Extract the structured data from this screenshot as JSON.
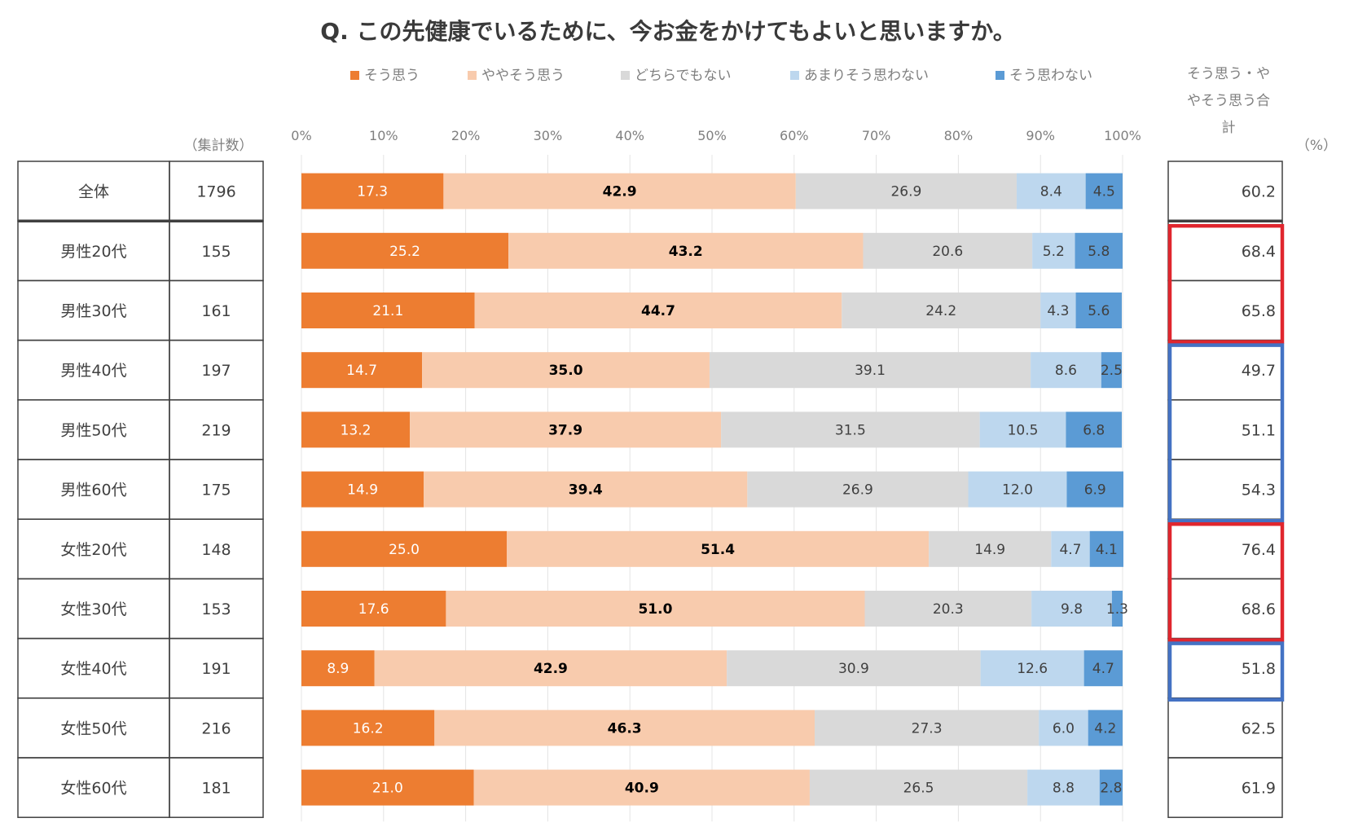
{
  "chart_data": {
    "type": "bar",
    "orientation": "horizontal",
    "stacked": "100%",
    "title": "Q. この先健康でいるために、今お金をかけてもよいと思いますか。",
    "count_header": "（集計数）",
    "total_header": "そう思う・ややそう思う合計",
    "unit_label": "（%）",
    "x_ticks": [
      "0%",
      "10%",
      "20%",
      "30%",
      "40%",
      "50%",
      "60%",
      "70%",
      "80%",
      "90%",
      "100%"
    ],
    "xlim": [
      0,
      100
    ],
    "legend_position": "top",
    "grid": true,
    "categories": [
      "全体",
      "男性20代",
      "男性30代",
      "男性40代",
      "男性50代",
      "男性60代",
      "女性20代",
      "女性30代",
      "女性40代",
      "女性50代",
      "女性60代"
    ],
    "counts": [
      "1796",
      "155",
      "161",
      "197",
      "219",
      "175",
      "148",
      "153",
      "191",
      "216",
      "181"
    ],
    "totals": [
      "60.2",
      "68.4",
      "65.8",
      "49.7",
      "51.1",
      "54.3",
      "76.4",
      "68.6",
      "51.8",
      "62.5",
      "61.9"
    ],
    "series": [
      {
        "name": "そう思う",
        "color": "#ed7d31",
        "label_color": "#ffffff",
        "values": [
          17.3,
          25.2,
          21.1,
          14.7,
          13.2,
          14.9,
          25.0,
          17.6,
          8.9,
          16.2,
          21.0
        ],
        "labels": [
          "17.3",
          "25.2",
          "21.1",
          "14.7",
          "13.2",
          "14.9",
          "25.0",
          "17.6",
          "8.9",
          "16.2",
          "21.0"
        ]
      },
      {
        "name": "ややそう思う",
        "color": "#f8cbad",
        "label_color": "#000000",
        "values": [
          42.9,
          43.2,
          44.7,
          35.0,
          37.9,
          39.4,
          51.4,
          51.0,
          42.9,
          46.3,
          40.9
        ],
        "labels": [
          "42.9",
          "43.2",
          "44.7",
          "35.0",
          "37.9",
          "39.4",
          "51.4",
          "51.0",
          "42.9",
          "46.3",
          "40.9"
        ]
      },
      {
        "name": "どちらでもない",
        "color": "#d9d9d9",
        "label_color": "#404040",
        "values": [
          26.9,
          20.6,
          24.2,
          39.1,
          31.5,
          26.9,
          14.9,
          20.3,
          30.9,
          27.3,
          26.5
        ],
        "labels": [
          "26.9",
          "20.6",
          "24.2",
          "39.1",
          "31.5",
          "26.9",
          "14.9",
          "20.3",
          "30.9",
          "27.3",
          "26.5"
        ]
      },
      {
        "name": "あまりそう思わない",
        "color": "#bdd7ee",
        "label_color": "#404040",
        "values": [
          8.4,
          5.2,
          4.3,
          8.6,
          10.5,
          12.0,
          4.7,
          9.8,
          12.6,
          6.0,
          8.8
        ],
        "labels": [
          "8.4",
          "5.2",
          "4.3",
          "8.6",
          "10.5",
          "12.0",
          "4.7",
          "9.8",
          "12.6",
          "6.0",
          "8.8"
        ]
      },
      {
        "name": "そう思わない",
        "color": "#5b9bd5",
        "label_color": "#404040",
        "values": [
          4.5,
          5.8,
          5.6,
          2.5,
          6.8,
          6.9,
          4.1,
          1.3,
          4.7,
          4.2,
          2.8
        ],
        "labels": [
          "4.5",
          "5.8",
          "5.6",
          "2.5",
          "6.8",
          "6.9",
          "4.1",
          "1.3",
          "4.7",
          "4.2",
          "2.8"
        ]
      }
    ],
    "highlight_groups": [
      {
        "color": "#e0262e",
        "rows": [
          "男性20代",
          "男性30代"
        ]
      },
      {
        "color": "#4472c4",
        "rows": [
          "男性40代",
          "男性50代",
          "男性60代"
        ]
      },
      {
        "color": "#e0262e",
        "rows": [
          "女性20代",
          "女性30代"
        ]
      },
      {
        "color": "#4472c4",
        "rows": [
          "女性40代"
        ]
      }
    ]
  }
}
